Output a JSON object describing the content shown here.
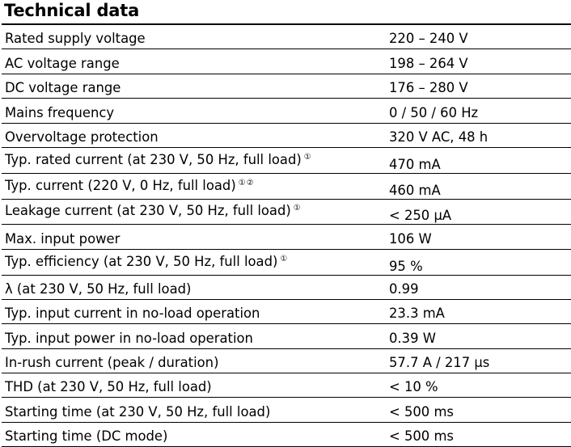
{
  "title": "Technical data",
  "rows": [
    {
      "label": "Rated supply voltage",
      "note": "",
      "value": "220 – 240 V"
    },
    {
      "label": "AC voltage range",
      "note": "",
      "value": "198 – 264 V"
    },
    {
      "label": "DC voltage range",
      "note": "",
      "value": "176 – 280 V"
    },
    {
      "label": "Mains frequency",
      "note": "",
      "value": "0 / 50 / 60 Hz"
    },
    {
      "label": "Overvoltage protection",
      "note": "",
      "value": "320 V AC, 48 h"
    },
    {
      "label": "Typ. rated current (at 230 V, 50 Hz, full load)",
      "note": "①",
      "value": "470 mA"
    },
    {
      "label": "Typ. current (220 V, 0 Hz, full load)",
      "note": "①②",
      "value": "460 mA"
    },
    {
      "label": "Leakage current (at 230 V, 50 Hz, full load)",
      "note": "①",
      "value": "< 250 μA"
    },
    {
      "label": "Max. input power",
      "note": "",
      "value": "106 W"
    },
    {
      "label": "Typ. efficiency (at 230 V, 50 Hz, full load)",
      "note": "①",
      "value": "95 %"
    },
    {
      "label": "λ (at 230 V, 50 Hz, full load)",
      "note": "",
      "value": "0.99"
    },
    {
      "label": "Typ. input current in no-load operation",
      "note": "",
      "value": "23.3 mA"
    },
    {
      "label": "Typ. input power in no-load operation",
      "note": "",
      "value": "0.39 W"
    },
    {
      "label": "In-rush current (peak / duration)",
      "note": "",
      "value": "57.7 A / 217 μs"
    },
    {
      "label": "THD (at 230 V, 50 Hz, full load)",
      "note": "",
      "value": "< 10 %"
    },
    {
      "label": "Starting time (at 230 V, 50 Hz, full load)",
      "note": "",
      "value": "< 500 ms"
    },
    {
      "label": "Starting time (DC mode)",
      "note": "",
      "value": "< 500 ms"
    }
  ]
}
